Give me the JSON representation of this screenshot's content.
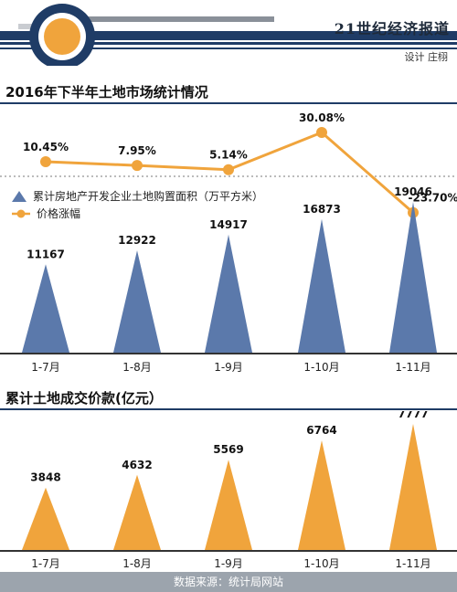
{
  "header": {
    "publication": "21世纪经济报道",
    "credit": "设计 庄栩"
  },
  "legend": {
    "area_label": "累计房地产开发企业土地购置面积（万平方米）",
    "price_label": "价格涨幅"
  },
  "source": "数据来源：统计局网站",
  "colors": {
    "navy": "#1f3c66",
    "orange": "#f0a43c",
    "blue_peak": "#5b79ab",
    "gray": "#6e6e6e"
  },
  "chart_data": [
    {
      "type": "line",
      "title": "2016年下半年土地市场统计情况",
      "categories": [
        "1-7月",
        "1-8月",
        "1-9月",
        "1-10月",
        "1-11月"
      ],
      "value_labels": [
        "10.45%",
        "7.95%",
        "5.14%",
        "30.08%",
        "-23.70%"
      ],
      "series": [
        {
          "name": "价格涨幅",
          "values": [
            10.45,
            7.95,
            5.14,
            30.08,
            -23.7
          ]
        }
      ]
    },
    {
      "type": "bar",
      "categories": [
        "1-7月",
        "1-8月",
        "1-9月",
        "1-10月",
        "1-11月"
      ],
      "series": [
        {
          "name": "累计房地产开发企业土地购置面积（万平方米）",
          "values": [
            11167,
            12922,
            14917,
            16873,
            19046
          ]
        }
      ]
    },
    {
      "type": "bar",
      "title": "累计土地成交价款(亿元）",
      "categories": [
        "1-7月",
        "1-8月",
        "1-9月",
        "1-10月",
        "1-11月"
      ],
      "series": [
        {
          "name": "累计土地成交价款",
          "values": [
            3848,
            4632,
            5569,
            6764,
            7777
          ]
        }
      ]
    }
  ]
}
